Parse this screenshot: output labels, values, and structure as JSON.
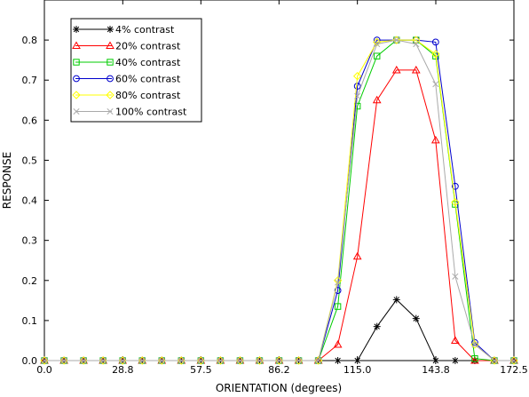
{
  "chart_data": {
    "type": "line",
    "title": "",
    "xlabel": "ORIENTATION (degrees)",
    "ylabel": "RESPONSE",
    "xlim": [
      0,
      172.5
    ],
    "ylim": [
      0,
      0.9
    ],
    "x_ticks": [
      0.0,
      28.8,
      57.5,
      86.2,
      115.0,
      143.8,
      172.5
    ],
    "x_tick_labels": [
      "0.0",
      "28.8",
      "57.5",
      "86.2",
      "115.0",
      "143.8",
      "172.5"
    ],
    "y_ticks": [
      0.0,
      0.1,
      0.2,
      0.3,
      0.4,
      0.5,
      0.6,
      0.7,
      0.8
    ],
    "y_tick_labels": [
      "0.0",
      "0.1",
      "0.2",
      "0.3",
      "0.4",
      "0.5",
      "0.6",
      "0.7",
      "0.8"
    ],
    "legend_position": "top-left",
    "grid": false,
    "x": [
      0,
      7.19,
      14.38,
      21.56,
      28.75,
      35.94,
      43.13,
      50.31,
      57.5,
      64.69,
      71.88,
      79.06,
      86.25,
      93.44,
      100.63,
      107.81,
      115.0,
      122.19,
      129.38,
      136.56,
      143.75,
      150.94,
      158.13,
      165.31,
      172.5
    ],
    "series": [
      {
        "name": "4% contrast",
        "color": "#000000",
        "marker": "asterisk",
        "values": [
          0,
          0,
          0,
          0,
          0,
          0,
          0,
          0,
          0,
          0,
          0,
          0,
          0,
          0,
          0,
          0,
          0,
          0.085,
          0.152,
          0.105,
          0,
          0,
          0,
          0,
          0
        ]
      },
      {
        "name": "20% contrast",
        "color": "#ff0000",
        "marker": "triangle",
        "values": [
          0,
          0,
          0,
          0,
          0,
          0,
          0,
          0,
          0,
          0,
          0,
          0,
          0,
          0,
          0,
          0.04,
          0.26,
          0.65,
          0.725,
          0.725,
          0.55,
          0.05,
          0,
          0,
          0
        ]
      },
      {
        "name": "40% contrast",
        "color": "#00cc00",
        "marker": "square",
        "values": [
          0,
          0,
          0,
          0,
          0,
          0,
          0,
          0,
          0,
          0,
          0,
          0,
          0,
          0,
          0,
          0.135,
          0.635,
          0.76,
          0.8,
          0.8,
          0.76,
          0.39,
          0.005,
          0,
          0
        ]
      },
      {
        "name": "60% contrast",
        "color": "#0000cc",
        "marker": "circle",
        "values": [
          0,
          0,
          0,
          0,
          0,
          0,
          0,
          0,
          0,
          0,
          0,
          0,
          0,
          0,
          0,
          0.175,
          0.685,
          0.8,
          0.8,
          0.8,
          0.795,
          0.435,
          0.045,
          0,
          0
        ]
      },
      {
        "name": "80% contrast",
        "color": "#ffff00",
        "marker": "diamond",
        "values": [
          0,
          0,
          0,
          0,
          0,
          0,
          0,
          0,
          0,
          0,
          0,
          0,
          0,
          0,
          0,
          0.2,
          0.71,
          0.795,
          0.8,
          0.8,
          0.765,
          0.395,
          0.04,
          0,
          0
        ]
      },
      {
        "name": "100% contrast",
        "color": "#aaaaaa",
        "marker": "x",
        "values": [
          0,
          0,
          0,
          0,
          0,
          0,
          0,
          0,
          0,
          0,
          0,
          0,
          0,
          0,
          0,
          0.195,
          0.66,
          0.79,
          0.8,
          0.79,
          0.69,
          0.21,
          0.04,
          0,
          0
        ]
      }
    ]
  }
}
